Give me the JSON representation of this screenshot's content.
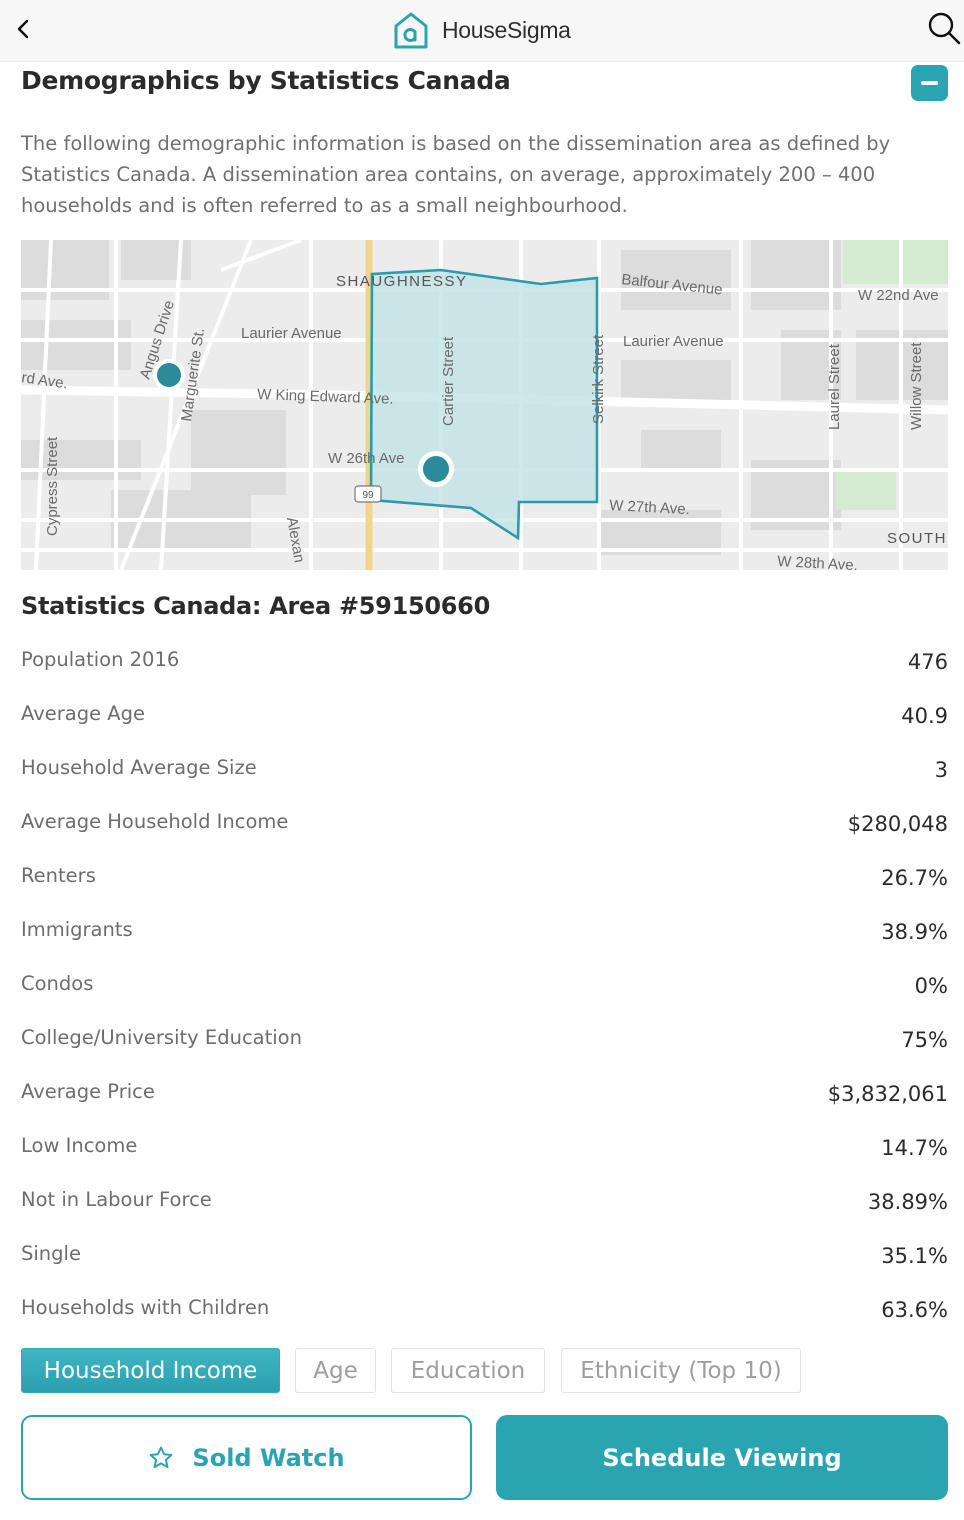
{
  "header": {
    "app_name": "HouseSigma",
    "back_icon": "chevron-left-icon",
    "search_icon": "search-icon"
  },
  "section": {
    "title": "Demographics by Statistics Canada",
    "collapse_icon": "minus-icon",
    "intro": "The following demographic information is based on the dissemination area as defined by Statistics Canada. A dissemination area contains, on average, approximately 200 – 400 households and is often referred to as a small neighbourhood."
  },
  "map": {
    "labels": {
      "shaughnessy": "SHAUGHNESSY",
      "balfour": "Balfour Avenue",
      "w22": "W 22nd Ave",
      "laurier_left": "Laurier Avenue",
      "laurier_right": "Laurier Avenue",
      "angus": "Angus Drive",
      "marguerite": "Marguerite St.",
      "edward_left": "rd Ave.",
      "king_edward": "W King Edward Ave.",
      "cartier": "Cartier Street",
      "selkirk": "Selkirk Street",
      "laurel": "Laurel Street",
      "willow": "Willow Street",
      "w26": "W 26th Ave",
      "w27": "W 27th Ave.",
      "w28": "W 28th Ave.",
      "cypress": "Cypress Street",
      "alexandra": "Alexan",
      "south": "SOUTH",
      "highway": "99"
    },
    "colors": {
      "area_stroke": "#2b9aab",
      "area_fill": "#bfe3e6",
      "pin": "#2b8b9a"
    }
  },
  "area": {
    "title": "Statistics Canada: Area #59150660",
    "stats": [
      {
        "label": "Population 2016",
        "value": "476"
      },
      {
        "label": "Average Age",
        "value": "40.9"
      },
      {
        "label": "Household Average Size",
        "value": "3"
      },
      {
        "label": "Average Household Income",
        "value": "$280,048"
      },
      {
        "label": "Renters",
        "value": "26.7%"
      },
      {
        "label": "Immigrants",
        "value": "38.9%"
      },
      {
        "label": "Condos",
        "value": "0%"
      },
      {
        "label": "College/University Education",
        "value": "75%"
      },
      {
        "label": "Average Price",
        "value": "$3,832,061"
      },
      {
        "label": "Low Income",
        "value": "14.7%"
      },
      {
        "label": "Not in Labour Force",
        "value": "38.89%"
      },
      {
        "label": "Single",
        "value": "35.1%"
      },
      {
        "label": "Households with Children",
        "value": "63.6%"
      }
    ]
  },
  "tabs": {
    "items": [
      {
        "label": "Household Income",
        "active": true
      },
      {
        "label": "Age",
        "active": false
      },
      {
        "label": "Education",
        "active": false
      },
      {
        "label": "Ethnicity (Top 10)",
        "active": false
      }
    ]
  },
  "actions": {
    "sold_watch": "Sold Watch",
    "sold_watch_icon": "star-icon",
    "schedule_viewing": "Schedule Viewing"
  },
  "theme": {
    "accent": "#2ba4b2",
    "header_bg": "#f7f7f7"
  }
}
